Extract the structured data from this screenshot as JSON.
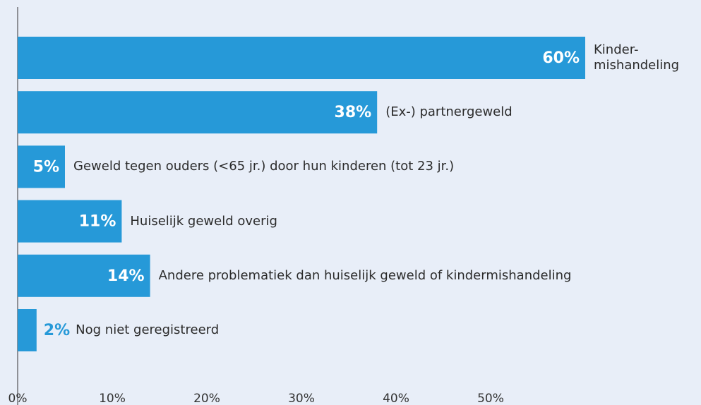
{
  "chart_data": {
    "type": "bar",
    "orientation": "horizontal",
    "categories": [
      "Kinder-\nmishandeling",
      "(Ex-) partnergeweld",
      "Geweld tegen ouders (<65 jr.) door hun kinderen (tot 23 jr.)",
      "Huiselijk geweld overig",
      "Andere problematiek dan huiselijk geweld of kindermishandeling",
      "Nog niet geregistreerd"
    ],
    "values": [
      60,
      38,
      5,
      11,
      14,
      2
    ],
    "value_labels": [
      "60%",
      "38%",
      "5%",
      "11%",
      "14%",
      "2%"
    ],
    "color": "#2699d8",
    "xlim": [
      0,
      50
    ],
    "xticks": [
      {
        "value": 0,
        "label": "0%"
      },
      {
        "value": 10,
        "label": "10%"
      },
      {
        "value": 20,
        "label": "20%"
      },
      {
        "value": 30,
        "label": "30%"
      },
      {
        "value": 40,
        "label": "40%"
      },
      {
        "value": 50,
        "label": "50%"
      }
    ]
  }
}
